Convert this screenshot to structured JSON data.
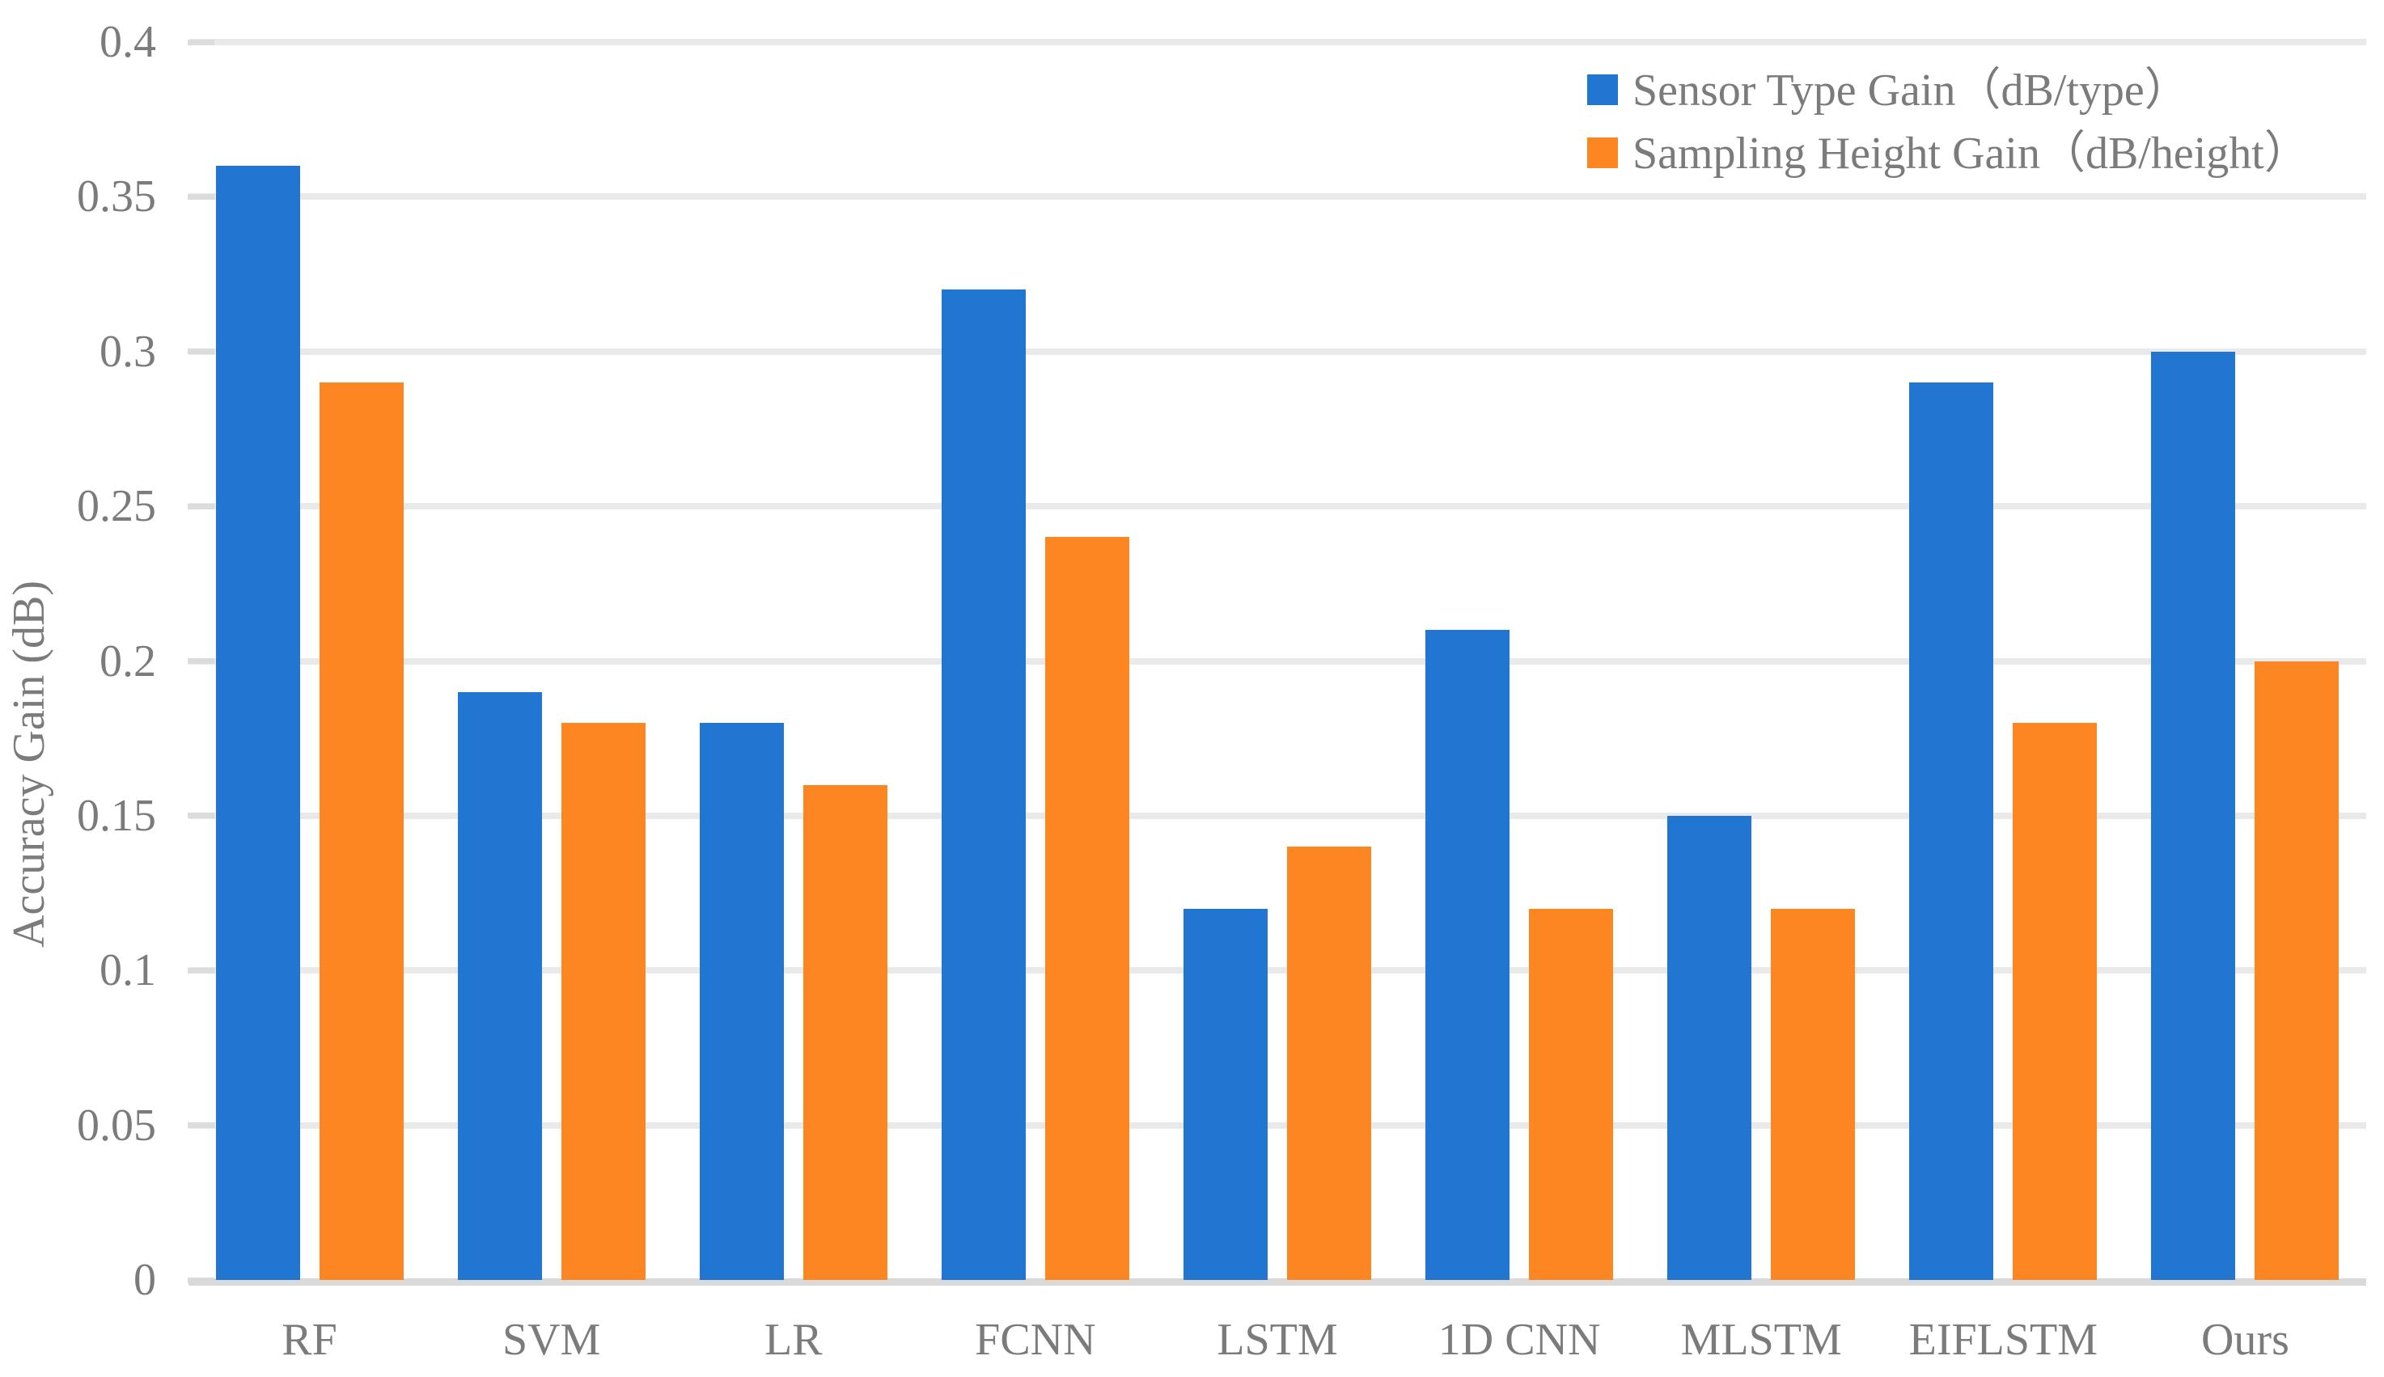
{
  "chart_data": {
    "type": "bar",
    "title": "",
    "xlabel": "",
    "ylabel": "Accuracy Gain (dB)",
    "ylim": [
      0,
      0.4
    ],
    "grid": "horizontal",
    "legend_position": "top-right",
    "categories": [
      "RF",
      "SVM",
      "LR",
      "FCNN",
      "LSTM",
      "1D CNN",
      "MLSTM",
      "EIFLSTM",
      "Ours"
    ],
    "series": [
      {
        "name": "Sensor Type Gain（dB/type）",
        "color": "#2176D2",
        "values": [
          0.36,
          0.19,
          0.18,
          0.32,
          0.12,
          0.21,
          0.15,
          0.29,
          0.3
        ]
      },
      {
        "name": "Sampling Height Gain（dB/height）",
        "color": "#FC8621",
        "values": [
          0.29,
          0.18,
          0.16,
          0.24,
          0.14,
          0.12,
          0.12,
          0.18,
          0.2
        ]
      }
    ],
    "ytick_values": [
      0,
      0.05,
      0.1,
      0.15,
      0.2,
      0.25,
      0.3,
      0.35,
      0.4
    ],
    "ytick_labels": [
      "0",
      "0.05",
      "0.1",
      "0.15",
      "0.2",
      "0.25",
      "0.3",
      "0.35",
      "0.4"
    ],
    "colors": {
      "text": "#7B7B7B",
      "gridline": "#E9E9E9",
      "tick": "#DCDCDC",
      "baseline": "#D9D9D9",
      "background": "#FFFFFF"
    }
  }
}
